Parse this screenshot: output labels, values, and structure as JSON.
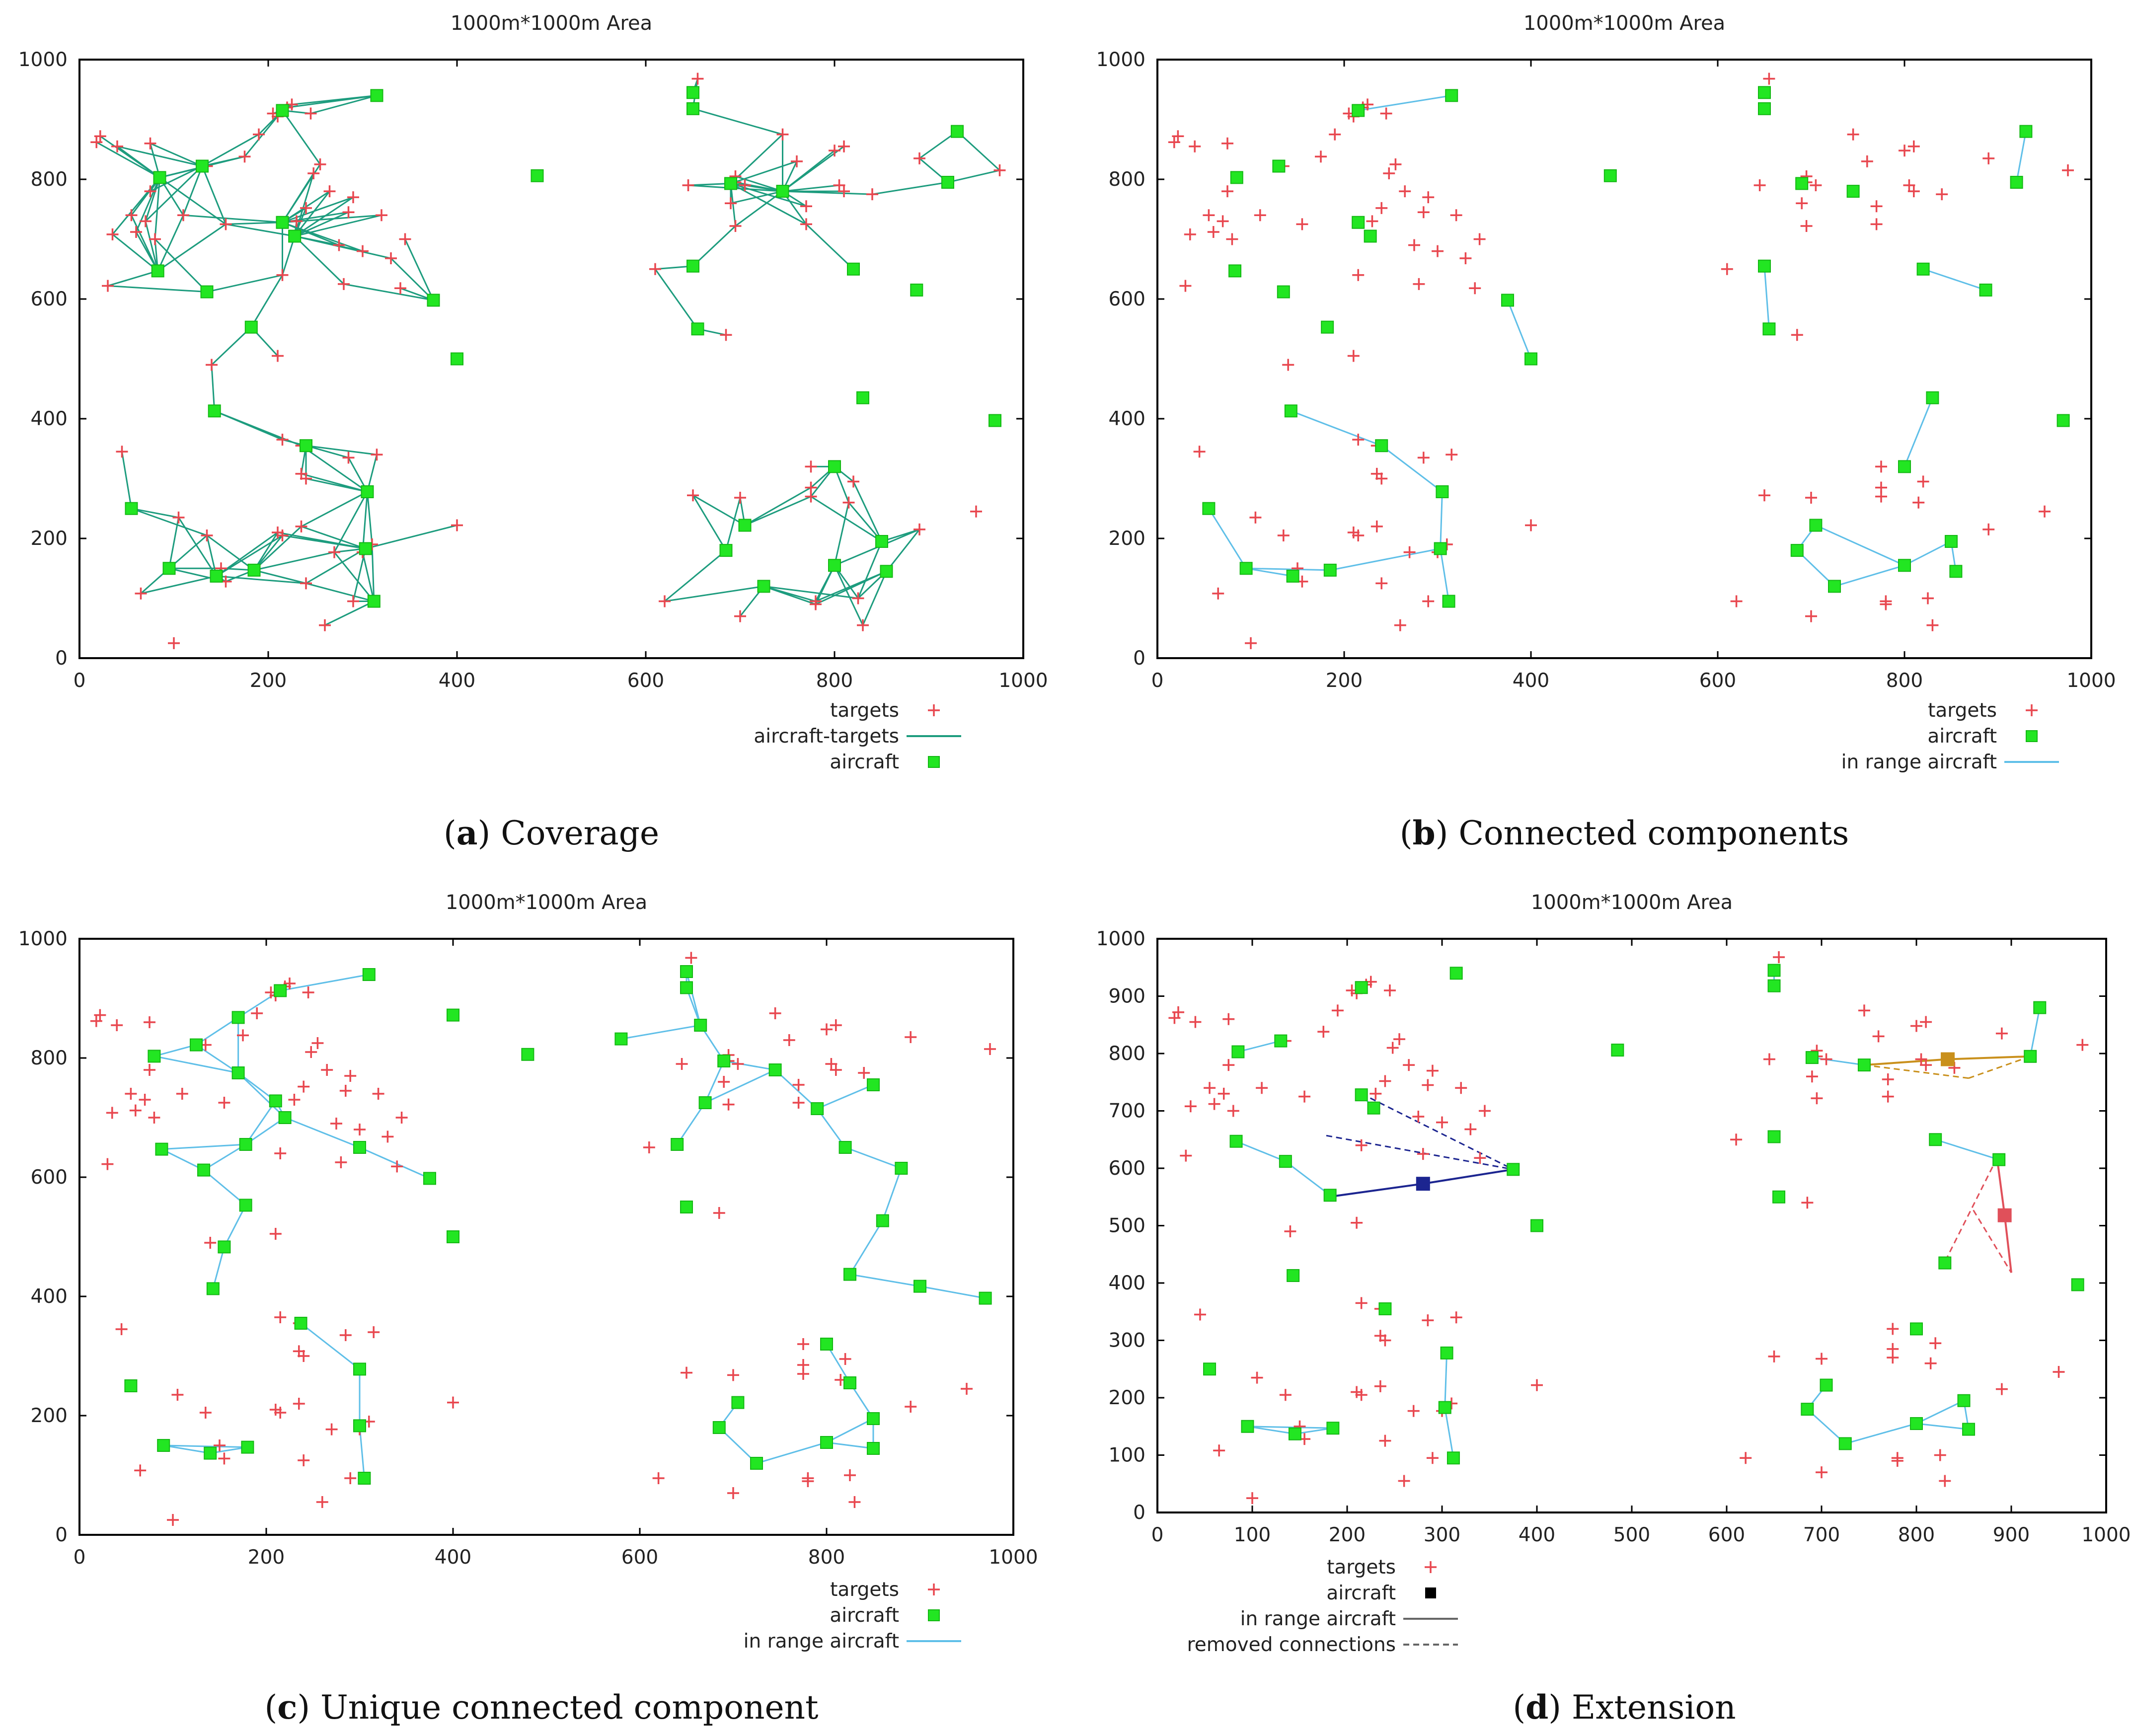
{
  "figure": {
    "background": "#ffffff"
  },
  "colors": {
    "target": "#e8474f",
    "aircraft": "#22e622",
    "aircraft_edge": "#14b814",
    "coverage": "#1d9c7e",
    "range": "#5fbfe8",
    "navy": "#1c2590",
    "gold": "#c9901c",
    "red": "#e0505a",
    "legend_black": "#000000",
    "legend_gray": "#666666"
  },
  "chart_data": [
    {
      "type": "scatter",
      "panel_letter": "a",
      "caption": "Coverage",
      "title": "1000m*1000m Area",
      "xlim": [
        0,
        1000
      ],
      "ylim": [
        0,
        1000
      ],
      "xticks": [
        0,
        200,
        400,
        600,
        800,
        1000
      ],
      "yticks": [
        0,
        200,
        400,
        600,
        800,
        1000
      ],
      "legend": [
        {
          "label": "targets",
          "kind": "target"
        },
        {
          "label": "aircraft-targets",
          "kind": "line",
          "color": "coverage"
        },
        {
          "label": "aircraft",
          "kind": "aircraft"
        }
      ],
      "edge_style": "coverage"
    },
    {
      "type": "scatter",
      "panel_letter": "b",
      "caption": "Connected components",
      "title": "1000m*1000m Area",
      "xlim": [
        0,
        1000
      ],
      "ylim": [
        0,
        1000
      ],
      "xticks": [
        0,
        200,
        400,
        600,
        800,
        1000
      ],
      "yticks": [
        0,
        200,
        400,
        600,
        800,
        1000
      ],
      "legend": [
        {
          "label": "targets",
          "kind": "target"
        },
        {
          "label": "aircraft",
          "kind": "aircraft"
        },
        {
          "label": "in range aircraft",
          "kind": "line",
          "color": "range"
        }
      ],
      "edges": [
        [
          [
            215,
            915
          ],
          [
            315,
            940
          ]
        ],
        [
          [
            650,
            655
          ],
          [
            655,
            550
          ]
        ],
        [
          [
            375,
            598
          ],
          [
            400,
            500
          ]
        ],
        [
          [
            820,
            650
          ],
          [
            887,
            615
          ]
        ],
        [
          [
            920,
            795
          ],
          [
            930,
            880
          ]
        ],
        [
          [
            143,
            413
          ],
          [
            240,
            355
          ]
        ],
        [
          [
            240,
            355
          ],
          [
            305,
            278
          ]
        ],
        [
          [
            305,
            278
          ],
          [
            303,
            183
          ]
        ],
        [
          [
            303,
            183
          ],
          [
            312,
            95
          ]
        ],
        [
          [
            303,
            183
          ],
          [
            185,
            147
          ]
        ],
        [
          [
            185,
            147
          ],
          [
            95,
            150
          ]
        ],
        [
          [
            95,
            150
          ],
          [
            145,
            137
          ]
        ],
        [
          [
            55,
            250
          ],
          [
            95,
            150
          ]
        ],
        [
          [
            800,
            320
          ],
          [
            830,
            435
          ]
        ],
        [
          [
            685,
            180
          ],
          [
            705,
            222
          ]
        ],
        [
          [
            705,
            222
          ],
          [
            800,
            155
          ]
        ],
        [
          [
            800,
            155
          ],
          [
            850,
            195
          ]
        ],
        [
          [
            850,
            195
          ],
          [
            855,
            145
          ]
        ],
        [
          [
            685,
            180
          ],
          [
            725,
            120
          ]
        ],
        [
          [
            725,
            120
          ],
          [
            800,
            155
          ]
        ]
      ],
      "aircraft_override": [
        [
          55,
          250
        ],
        [
          95,
          150
        ],
        [
          145,
          137
        ],
        [
          185,
          147
        ],
        [
          303,
          183
        ],
        [
          312,
          95
        ],
        [
          305,
          278
        ],
        [
          240,
          355
        ],
        [
          143,
          413
        ],
        [
          83,
          647
        ],
        [
          135,
          612
        ],
        [
          182,
          553
        ],
        [
          215,
          915
        ],
        [
          315,
          940
        ],
        [
          215,
          728
        ],
        [
          228,
          705
        ],
        [
          375,
          598
        ],
        [
          400,
          500
        ],
        [
          485,
          806
        ],
        [
          85,
          803
        ],
        [
          130,
          822
        ],
        [
          650,
          945
        ],
        [
          650,
          918
        ],
        [
          690,
          793
        ],
        [
          745,
          780
        ],
        [
          650,
          655
        ],
        [
          655,
          550
        ],
        [
          820,
          650
        ],
        [
          887,
          615
        ],
        [
          920,
          795
        ],
        [
          930,
          880
        ],
        [
          970,
          397
        ],
        [
          800,
          320
        ],
        [
          830,
          435
        ],
        [
          685,
          180
        ],
        [
          705,
          222
        ],
        [
          725,
          120
        ],
        [
          800,
          155
        ],
        [
          850,
          195
        ],
        [
          855,
          145
        ]
      ]
    },
    {
      "type": "scatter",
      "panel_letter": "c",
      "caption": "Unique connected component",
      "title": "1000m*1000m Area",
      "xlim": [
        0,
        1000
      ],
      "ylim": [
        0,
        1000
      ],
      "xticks": [
        0,
        200,
        400,
        600,
        800,
        1000
      ],
      "yticks": [
        0,
        200,
        400,
        600,
        800,
        1000
      ],
      "legend": [
        {
          "label": "targets",
          "kind": "target"
        },
        {
          "label": "aircraft",
          "kind": "aircraft"
        },
        {
          "label": "in range aircraft",
          "kind": "line",
          "color": "range"
        }
      ],
      "aircraft_c": [
        [
          80,
          803
        ],
        [
          125,
          822
        ],
        [
          170,
          868
        ],
        [
          170,
          775
        ],
        [
          178,
          655
        ],
        [
          178,
          553
        ],
        [
          210,
          728
        ],
        [
          220,
          700
        ],
        [
          215,
          913
        ],
        [
          310,
          940
        ],
        [
          400,
          872
        ],
        [
          480,
          806
        ],
        [
          580,
          832
        ],
        [
          650,
          945
        ],
        [
          650,
          918
        ],
        [
          665,
          855
        ],
        [
          690,
          795
        ],
        [
          670,
          725
        ],
        [
          745,
          780
        ],
        [
          790,
          715
        ],
        [
          850,
          755
        ],
        [
          820,
          650
        ],
        [
          880,
          615
        ],
        [
          860,
          527
        ],
        [
          825,
          437
        ],
        [
          900,
          417
        ],
        [
          970,
          397
        ],
        [
          800,
          320
        ],
        [
          825,
          255
        ],
        [
          850,
          195
        ],
        [
          850,
          145
        ],
        [
          800,
          155
        ],
        [
          685,
          180
        ],
        [
          705,
          222
        ],
        [
          725,
          120
        ],
        [
          640,
          655
        ],
        [
          650,
          550
        ],
        [
          88,
          647
        ],
        [
          133,
          612
        ],
        [
          155,
          483
        ],
        [
          143,
          413
        ],
        [
          237,
          355
        ],
        [
          300,
          278
        ],
        [
          300,
          183
        ],
        [
          305,
          95
        ],
        [
          55,
          250
        ],
        [
          90,
          150
        ],
        [
          140,
          137
        ],
        [
          180,
          147
        ],
        [
          300,
          650
        ],
        [
          375,
          598
        ],
        [
          400,
          500
        ]
      ]
    },
    {
      "type": "scatter",
      "panel_letter": "d",
      "caption": "Extension",
      "title": "1000m*1000m Area",
      "xlim": [
        0,
        1000
      ],
      "ylim": [
        0,
        1000
      ],
      "xticks": [
        0,
        100,
        200,
        300,
        400,
        500,
        600,
        700,
        800,
        900,
        1000
      ],
      "yticks": [
        0,
        100,
        200,
        300,
        400,
        500,
        600,
        700,
        800,
        900,
        1000
      ],
      "legend": [
        {
          "label": "targets",
          "kind": "target"
        },
        {
          "label": "aircraft",
          "kind": "square",
          "color": "legend_black"
        },
        {
          "label": "in range aircraft",
          "kind": "line",
          "color": "legend_gray"
        },
        {
          "label": "removed connections",
          "kind": "dash",
          "color": "legend_gray"
        }
      ],
      "special_aircraft": [
        {
          "x": 280,
          "y": 573,
          "color": "navy"
        },
        {
          "x": 833,
          "y": 790,
          "color": "gold"
        },
        {
          "x": 893,
          "y": 518,
          "color": "red"
        }
      ],
      "special_solid": [
        {
          "from": [
            180,
            550
          ],
          "to": [
            280,
            573
          ],
          "color": "navy"
        },
        {
          "from": [
            280,
            573
          ],
          "to": [
            375,
            598
          ],
          "color": "navy"
        },
        {
          "from": [
            745,
            780
          ],
          "to": [
            833,
            790
          ],
          "color": "gold"
        },
        {
          "from": [
            833,
            790
          ],
          "to": [
            920,
            795
          ],
          "color": "gold"
        },
        {
          "from": [
            885,
            618
          ],
          "to": [
            893,
            518
          ],
          "color": "red"
        },
        {
          "from": [
            893,
            518
          ],
          "to": [
            900,
            418
          ],
          "color": "red"
        }
      ],
      "special_dashed": [
        {
          "from": [
            215,
            730
          ],
          "to": [
            375,
            598
          ],
          "color": "navy"
        },
        {
          "from": [
            178,
            657
          ],
          "to": [
            375,
            598
          ],
          "color": "navy"
        },
        {
          "from": [
            745,
            780
          ],
          "to": [
            855,
            757
          ],
          "color": "gold"
        },
        {
          "from": [
            920,
            795
          ],
          "to": [
            855,
            757
          ],
          "color": "gold"
        },
        {
          "from": [
            885,
            618
          ],
          "to": [
            830,
            437
          ],
          "color": "red"
        },
        {
          "from": [
            860,
            527
          ],
          "to": [
            900,
            418
          ],
          "color": "red"
        }
      ]
    }
  ],
  "shared": {
    "targets": [
      [
        22,
        872
      ],
      [
        18,
        862
      ],
      [
        40,
        855
      ],
      [
        35,
        708
      ],
      [
        30,
        622
      ],
      [
        55,
        740
      ],
      [
        60,
        712
      ],
      [
        70,
        730
      ],
      [
        75,
        860
      ],
      [
        75,
        780
      ],
      [
        80,
        700
      ],
      [
        110,
        740
      ],
      [
        135,
        822
      ],
      [
        140,
        490
      ],
      [
        155,
        725
      ],
      [
        175,
        838
      ],
      [
        190,
        875
      ],
      [
        205,
        910
      ],
      [
        210,
        905
      ],
      [
        210,
        505
      ],
      [
        215,
        640
      ],
      [
        220,
        920
      ],
      [
        225,
        925
      ],
      [
        230,
        730
      ],
      [
        240,
        752
      ],
      [
        245,
        910
      ],
      [
        248,
        810
      ],
      [
        255,
        825
      ],
      [
        265,
        780
      ],
      [
        275,
        690
      ],
      [
        280,
        625
      ],
      [
        285,
        745
      ],
      [
        290,
        770
      ],
      [
        300,
        680
      ],
      [
        320,
        740
      ],
      [
        330,
        668
      ],
      [
        340,
        618
      ],
      [
        345,
        700
      ],
      [
        45,
        345
      ],
      [
        105,
        235
      ],
      [
        65,
        108
      ],
      [
        100,
        25
      ],
      [
        135,
        205
      ],
      [
        150,
        150
      ],
      [
        155,
        128
      ],
      [
        210,
        210
      ],
      [
        215,
        205
      ],
      [
        215,
        365
      ],
      [
        235,
        355
      ],
      [
        235,
        308
      ],
      [
        235,
        220
      ],
      [
        240,
        300
      ],
      [
        240,
        125
      ],
      [
        260,
        55
      ],
      [
        270,
        177
      ],
      [
        285,
        335
      ],
      [
        290,
        95
      ],
      [
        300,
        177
      ],
      [
        310,
        190
      ],
      [
        315,
        340
      ],
      [
        400,
        222
      ],
      [
        655,
        968
      ],
      [
        645,
        790
      ],
      [
        610,
        650
      ],
      [
        620,
        95
      ],
      [
        650,
        272
      ],
      [
        685,
        540
      ],
      [
        690,
        760
      ],
      [
        695,
        805
      ],
      [
        695,
        795
      ],
      [
        695,
        722
      ],
      [
        700,
        70
      ],
      [
        700,
        268
      ],
      [
        705,
        790
      ],
      [
        745,
        875
      ],
      [
        760,
        830
      ],
      [
        770,
        755
      ],
      [
        770,
        725
      ],
      [
        775,
        320
      ],
      [
        775,
        285
      ],
      [
        775,
        270
      ],
      [
        780,
        90
      ],
      [
        780,
        95
      ],
      [
        800,
        848
      ],
      [
        805,
        790
      ],
      [
        810,
        855
      ],
      [
        810,
        780
      ],
      [
        815,
        260
      ],
      [
        820,
        295
      ],
      [
        825,
        100
      ],
      [
        830,
        55
      ],
      [
        840,
        775
      ],
      [
        890,
        835
      ],
      [
        890,
        215
      ],
      [
        950,
        245
      ],
      [
        975,
        815
      ]
    ],
    "aircraft": [
      [
        55,
        250
      ],
      [
        95,
        150
      ],
      [
        145,
        137
      ],
      [
        185,
        147
      ],
      [
        303,
        183
      ],
      [
        312,
        95
      ],
      [
        305,
        278
      ],
      [
        240,
        355
      ],
      [
        143,
        413
      ],
      [
        83,
        647
      ],
      [
        135,
        612
      ],
      [
        182,
        553
      ],
      [
        215,
        915
      ],
      [
        315,
        940
      ],
      [
        215,
        728
      ],
      [
        228,
        705
      ],
      [
        375,
        598
      ],
      [
        400,
        500
      ],
      [
        485,
        806
      ],
      [
        85,
        803
      ],
      [
        130,
        822
      ],
      [
        650,
        945
      ],
      [
        650,
        918
      ],
      [
        690,
        793
      ],
      [
        745,
        780
      ],
      [
        650,
        655
      ],
      [
        655,
        550
      ],
      [
        820,
        650
      ],
      [
        887,
        615
      ],
      [
        920,
        795
      ],
      [
        930,
        880
      ],
      [
        970,
        397
      ],
      [
        800,
        320
      ],
      [
        830,
        435
      ],
      [
        685,
        180
      ],
      [
        705,
        222
      ],
      [
        725,
        120
      ],
      [
        800,
        155
      ],
      [
        850,
        195
      ],
      [
        855,
        145
      ]
    ],
    "range_edges": [
      [
        0,
        1
      ],
      [
        1,
        2
      ],
      [
        2,
        3
      ],
      [
        3,
        4
      ],
      [
        4,
        5
      ],
      [
        4,
        6
      ],
      [
        6,
        7
      ],
      [
        7,
        8
      ],
      [
        1,
        0
      ]
    ]
  }
}
